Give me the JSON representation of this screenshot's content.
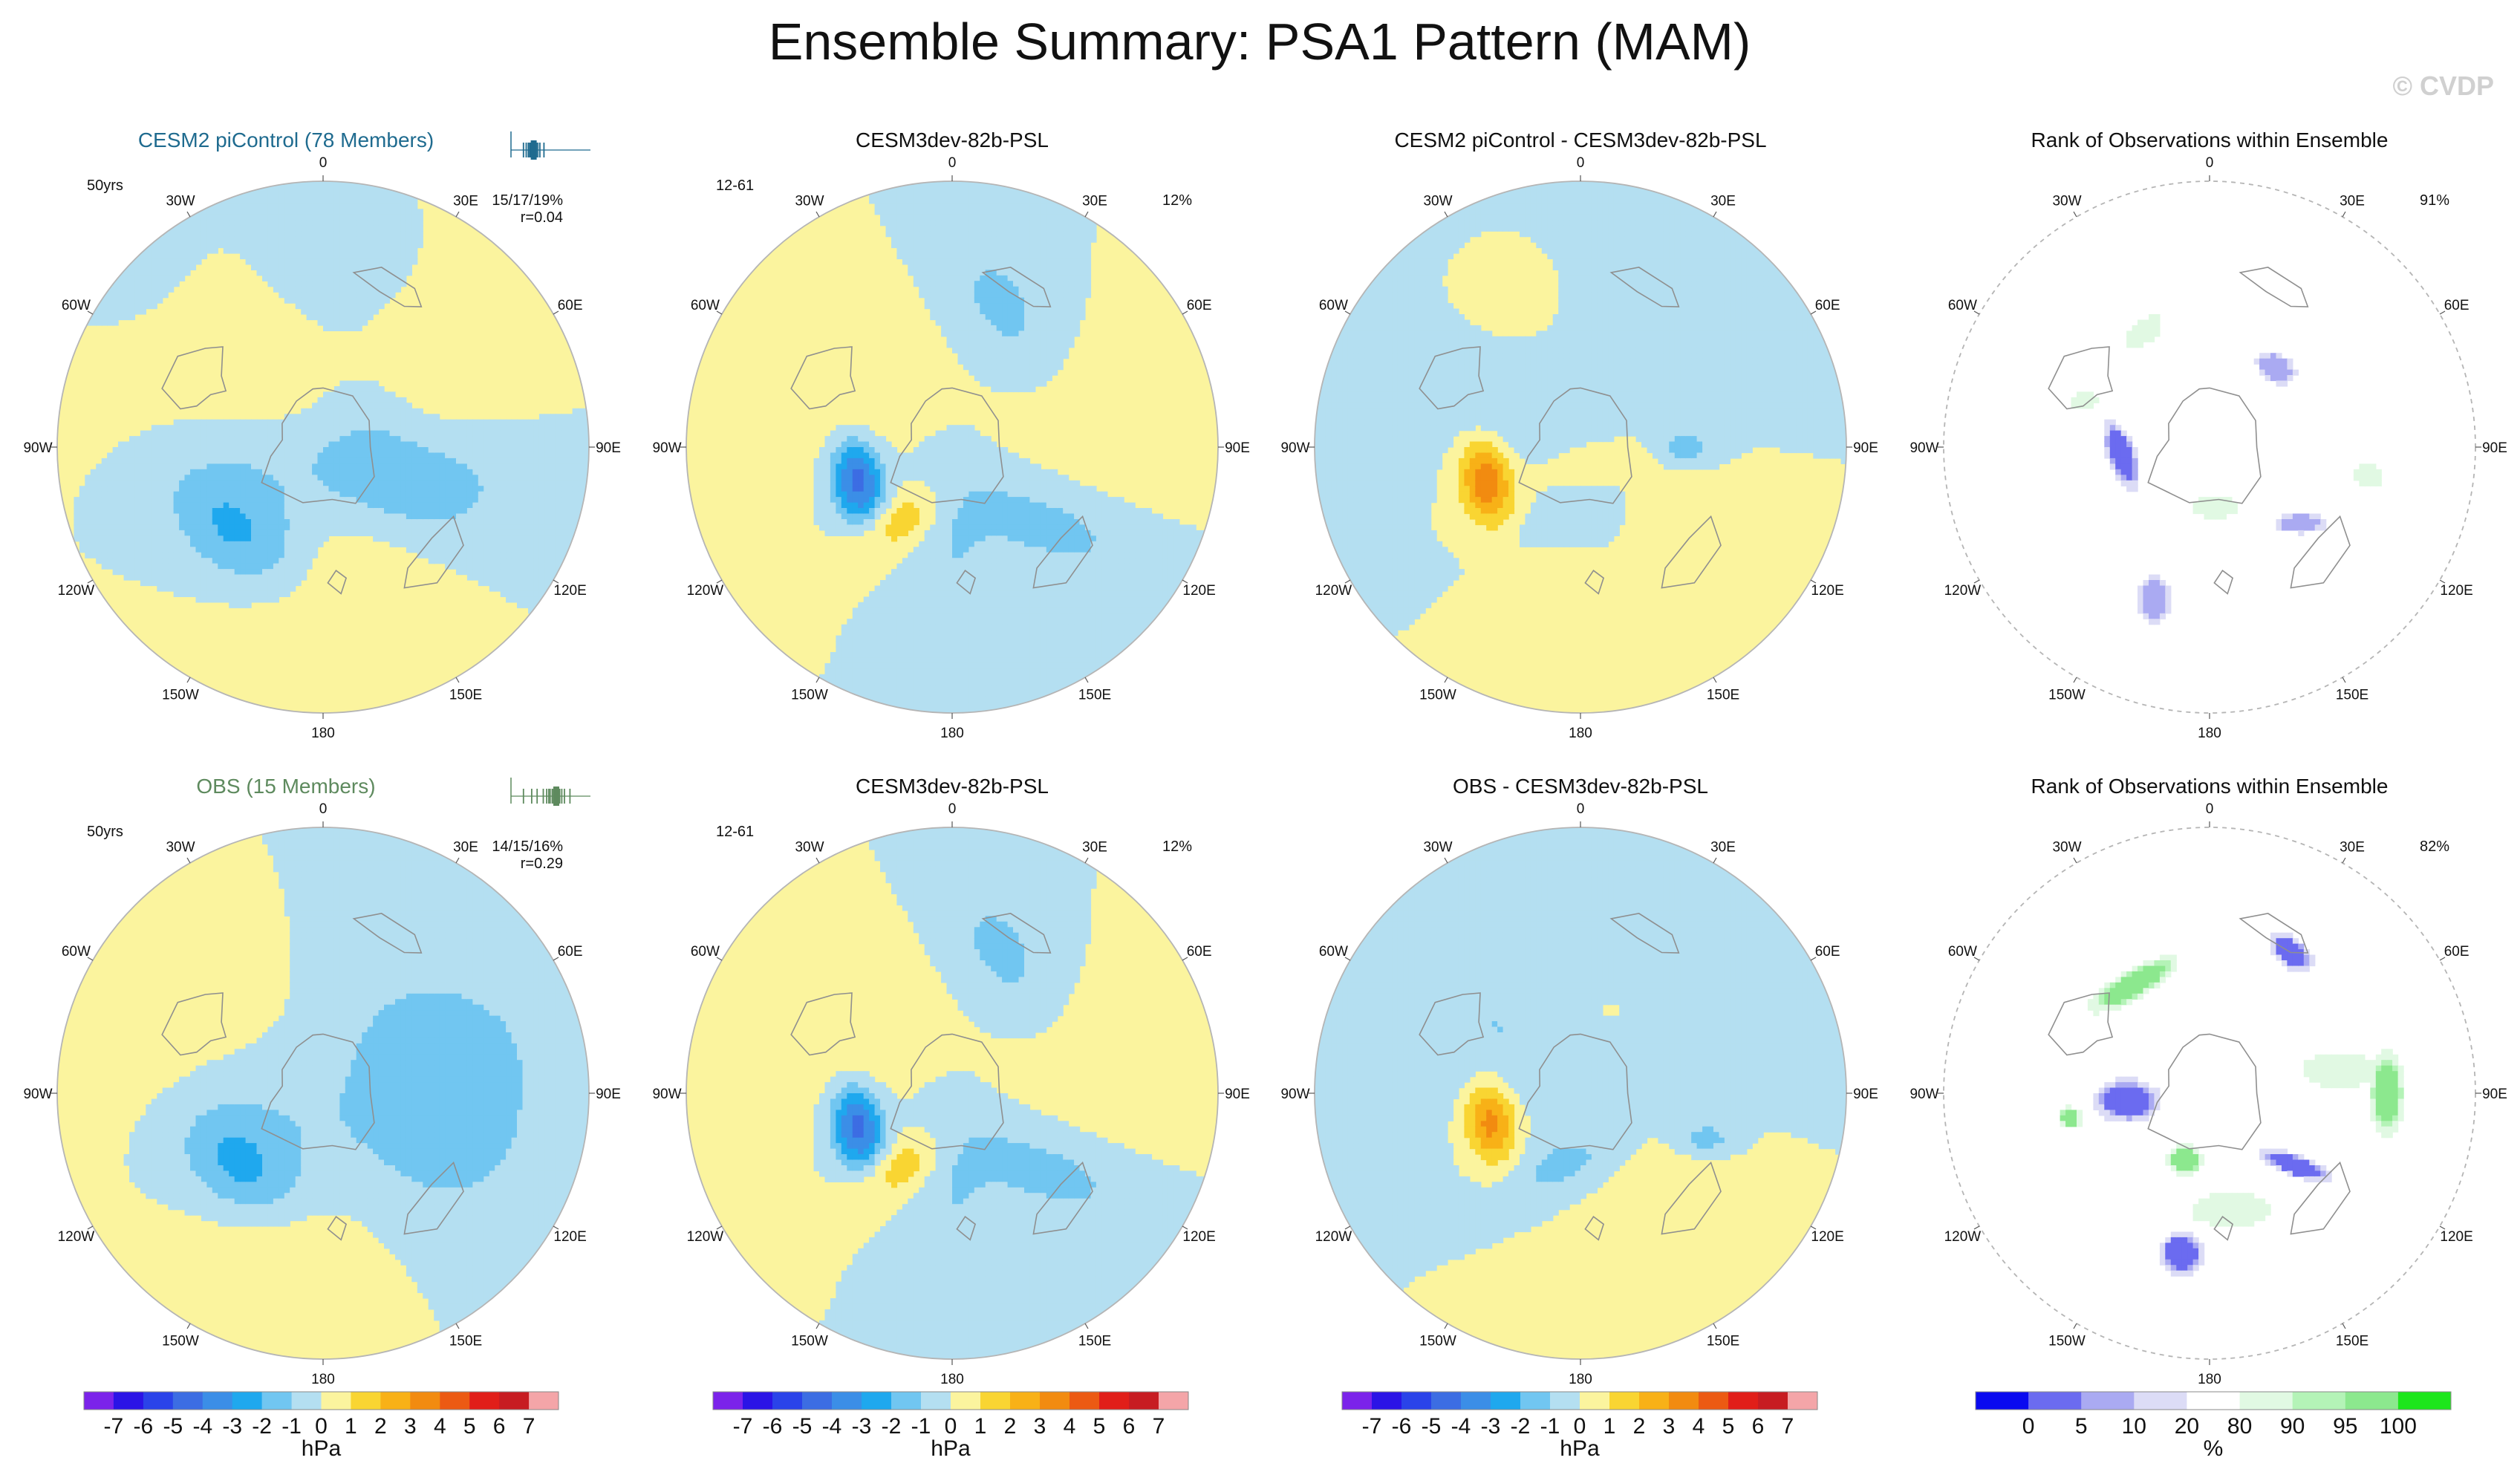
{
  "page": {
    "title": "Ensemble Summary: PSA1 Pattern (MAM)",
    "watermark": "© CVDP"
  },
  "colors": {
    "land_outline": "#8f8f8f",
    "rim": "#b5b5b5",
    "title_cesm2": "#1f6b8f",
    "title_obs": "#5e8a5e",
    "sparkline_cesm2": "#1f6b8f",
    "sparkline_obs": "#5e8a5e"
  },
  "longitude_labels": [
    "0",
    "30E",
    "60E",
    "90E",
    "120E",
    "150E",
    "180",
    "150W",
    "120W",
    "90W",
    "60W",
    "30W"
  ],
  "chart_data": [
    {
      "id": "row1-ensemble",
      "type": "polar-contour",
      "variable": "PSL",
      "title": "CESM2 piControl (78 Members)",
      "title_color": "title_cesm2",
      "left_note": "50yrs",
      "right_note_1": "15/17/19%",
      "right_note_2": "r=0.04",
      "sparkline": {
        "color": "sparkline_cesm2",
        "type": "member_distribution",
        "values": [
          0.02,
          0.06,
          0.09,
          0.11,
          0.12,
          0.13,
          0.14,
          0.15,
          0.155,
          0.16,
          0.165,
          0.17,
          0.175,
          0.18,
          0.19,
          0.2,
          0.21,
          0.23,
          0.26,
          0.32
        ],
        "highlight": 0.17
      },
      "anomalies_hPa": [
        {
          "lon_deg": 225,
          "colat_deg": 42,
          "amp": -1.9,
          "sx": 19,
          "sy": 11,
          "rot": 40
        },
        {
          "lon_deg": 270,
          "colat_deg": 30,
          "amp": -1.0,
          "sx": 34,
          "sy": 16,
          "rot": 60
        },
        {
          "lon_deg": 20,
          "colat_deg": 55,
          "amp": -0.9,
          "sx": 22,
          "sy": 16,
          "rot": 0
        },
        {
          "lon_deg": 120,
          "colat_deg": 28,
          "amp": -1.1,
          "sx": 24,
          "sy": 11,
          "rot": 20
        },
        {
          "lon_deg": 100,
          "colat_deg": 45,
          "amp": -0.8,
          "sx": 26,
          "sy": 12,
          "rot": 0
        },
        {
          "lon_deg": 60,
          "colat_deg": 18,
          "amp": -0.7,
          "sx": 14,
          "sy": 14,
          "rot": 0
        },
        {
          "lon_deg": 305,
          "colat_deg": 40,
          "amp": 1.3,
          "sx": 22,
          "sy": 18,
          "rot": 0
        },
        {
          "lon_deg": 45,
          "colat_deg": 55,
          "amp": 1.3,
          "sx": 22,
          "sy": 20,
          "rot": 0
        },
        {
          "lon_deg": 180,
          "colat_deg": 52,
          "amp": 1.1,
          "sx": 22,
          "sy": 20,
          "rot": 0
        }
      ]
    },
    {
      "id": "row1-model",
      "type": "polar-contour",
      "variable": "PSL",
      "title": "CESM3dev-82b-PSL",
      "left_note": "12-61",
      "right_note_1": "12%",
      "anomalies_hPa": [
        {
          "lon_deg": 250,
          "colat_deg": 34,
          "amp": -4.6,
          "sx": 10,
          "sy": 6,
          "rot": 80
        },
        {
          "lon_deg": 20,
          "colat_deg": 50,
          "amp": -1.3,
          "sx": 20,
          "sy": 12,
          "rot": 60
        },
        {
          "lon_deg": 130,
          "colat_deg": 40,
          "amp": -1.4,
          "sx": 26,
          "sy": 11,
          "rot": 20
        },
        {
          "lon_deg": 180,
          "colat_deg": 45,
          "amp": -0.9,
          "sx": 30,
          "sy": 9,
          "rot": 90
        },
        {
          "lon_deg": 215,
          "colat_deg": 30,
          "amp": 1.8,
          "sx": 12,
          "sy": 6,
          "rot": -30
        },
        {
          "lon_deg": 300,
          "colat_deg": 45,
          "amp": 0.9,
          "sx": 25,
          "sy": 20,
          "rot": 0
        },
        {
          "lon_deg": 80,
          "colat_deg": 55,
          "amp": 0.8,
          "sx": 25,
          "sy": 20,
          "rot": 0
        }
      ]
    },
    {
      "id": "row1-diff",
      "type": "polar-contour",
      "variable": "PSL",
      "title": "CESM2 piControl - CESM3dev-82b-PSL",
      "anomalies_hPa": [
        {
          "lon_deg": 250,
          "colat_deg": 34,
          "amp": 3.9,
          "sx": 10,
          "sy": 6,
          "rot": 80
        },
        {
          "lon_deg": 90,
          "colat_deg": 36,
          "amp": -1.6,
          "sx": 6,
          "sy": 4,
          "rot": 0
        },
        {
          "lon_deg": 170,
          "colat_deg": 22,
          "amp": -1.4,
          "sx": 16,
          "sy": 7,
          "rot": -20
        },
        {
          "lon_deg": 10,
          "colat_deg": 45,
          "amp": -0.9,
          "sx": 26,
          "sy": 16,
          "rot": 0
        },
        {
          "lon_deg": 300,
          "colat_deg": 30,
          "amp": -0.9,
          "sx": 22,
          "sy": 14,
          "rot": 0
        },
        {
          "lon_deg": 130,
          "colat_deg": 30,
          "amp": 1.1,
          "sx": 22,
          "sy": 10,
          "rot": 20
        },
        {
          "lon_deg": 190,
          "colat_deg": 55,
          "amp": 1.0,
          "sx": 16,
          "sy": 10,
          "rot": 90
        },
        {
          "lon_deg": 340,
          "colat_deg": 50,
          "amp": 1.0,
          "sx": 14,
          "sy": 12,
          "rot": 0
        }
      ]
    },
    {
      "id": "row1-rank",
      "type": "polar-rank",
      "title": "Rank of Observations within Ensemble",
      "right_note_1": "91%",
      "rank_patches": [
        {
          "lon_deg": 265,
          "colat_deg": 30,
          "val": 2,
          "sx": 10,
          "sy": 4,
          "rot": 70
        },
        {
          "lon_deg": 40,
          "colat_deg": 35,
          "val": 5,
          "sx": 6,
          "sy": 4,
          "rot": 30
        },
        {
          "lon_deg": 130,
          "colat_deg": 40,
          "val": 8,
          "sx": 8,
          "sy": 3,
          "rot": 0
        },
        {
          "lon_deg": 200,
          "colat_deg": 55,
          "val": 6,
          "sx": 5,
          "sy": 7,
          "rot": 0
        },
        {
          "lon_deg": 175,
          "colat_deg": 20,
          "val": 85,
          "sx": 8,
          "sy": 4,
          "rot": 0
        },
        {
          "lon_deg": 330,
          "colat_deg": 45,
          "val": 85,
          "sx": 8,
          "sy": 4,
          "rot": -40
        },
        {
          "lon_deg": 100,
          "colat_deg": 55,
          "val": 85,
          "sx": 5,
          "sy": 4,
          "rot": 0
        },
        {
          "lon_deg": 290,
          "colat_deg": 45,
          "val": 88,
          "sx": 4,
          "sy": 3,
          "rot": 0
        }
      ]
    },
    {
      "id": "row2-ensemble",
      "type": "polar-contour",
      "variable": "PSL",
      "title": "OBS (15 Members)",
      "title_color": "title_obs",
      "left_note": "50yrs",
      "right_note_1": "14/15/16%",
      "right_note_2": "r=0.29",
      "sparkline": {
        "color": "sparkline_obs",
        "type": "member_distribution",
        "values": [
          0.02,
          0.14,
          0.22,
          0.31,
          0.36,
          0.39,
          0.41,
          0.44,
          0.46,
          0.48,
          0.52,
          0.55,
          0.58,
          0.62,
          0.7
        ],
        "highlight": 0.5
      },
      "anomalies_hPa": [
        {
          "lon_deg": 228,
          "colat_deg": 38,
          "amp": -1.8,
          "sx": 15,
          "sy": 10,
          "rot": 40
        },
        {
          "lon_deg": 260,
          "colat_deg": 30,
          "amp": -1.0,
          "sx": 30,
          "sy": 18,
          "rot": 60
        },
        {
          "lon_deg": 60,
          "colat_deg": 40,
          "amp": -1.1,
          "sx": 40,
          "sy": 26,
          "rot": 0
        },
        {
          "lon_deg": 120,
          "colat_deg": 45,
          "amp": -1.0,
          "sx": 30,
          "sy": 24,
          "rot": 0
        },
        {
          "lon_deg": 300,
          "colat_deg": 48,
          "amp": 1.3,
          "sx": 26,
          "sy": 22,
          "rot": 0
        },
        {
          "lon_deg": 190,
          "colat_deg": 55,
          "amp": 1.1,
          "sx": 24,
          "sy": 20,
          "rot": 0
        }
      ]
    },
    {
      "id": "row2-model",
      "type": "polar-contour",
      "variable": "PSL",
      "title": "CESM3dev-82b-PSL",
      "left_note": "12-61",
      "right_note_1": "12%",
      "anomalies_hPa": [
        {
          "lon_deg": 250,
          "colat_deg": 34,
          "amp": -4.6,
          "sx": 10,
          "sy": 6,
          "rot": 80
        },
        {
          "lon_deg": 20,
          "colat_deg": 50,
          "amp": -1.3,
          "sx": 20,
          "sy": 12,
          "rot": 60
        },
        {
          "lon_deg": 130,
          "colat_deg": 40,
          "amp": -1.4,
          "sx": 26,
          "sy": 11,
          "rot": 20
        },
        {
          "lon_deg": 180,
          "colat_deg": 45,
          "amp": -0.9,
          "sx": 30,
          "sy": 9,
          "rot": 90
        },
        {
          "lon_deg": 215,
          "colat_deg": 30,
          "amp": 1.8,
          "sx": 12,
          "sy": 6,
          "rot": -30
        },
        {
          "lon_deg": 300,
          "colat_deg": 45,
          "amp": 0.9,
          "sx": 25,
          "sy": 20,
          "rot": 0
        },
        {
          "lon_deg": 80,
          "colat_deg": 55,
          "amp": 0.8,
          "sx": 25,
          "sy": 20,
          "rot": 0
        }
      ]
    },
    {
      "id": "row2-diff",
      "type": "polar-contour",
      "variable": "PSL",
      "title": "OBS - CESM3dev-82b-PSL",
      "anomalies_hPa": [
        {
          "lon_deg": 252,
          "colat_deg": 32,
          "amp": 3.6,
          "sx": 10,
          "sy": 6,
          "rot": 80
        },
        {
          "lon_deg": 110,
          "colat_deg": 45,
          "amp": -1.6,
          "sx": 7,
          "sy": 4,
          "rot": 0
        },
        {
          "lon_deg": 190,
          "colat_deg": 25,
          "amp": -1.4,
          "sx": 16,
          "sy": 8,
          "rot": -20
        },
        {
          "lon_deg": 40,
          "colat_deg": 40,
          "amp": -0.9,
          "sx": 30,
          "sy": 20,
          "rot": 0
        },
        {
          "lon_deg": 300,
          "colat_deg": 40,
          "amp": -0.9,
          "sx": 26,
          "sy": 20,
          "rot": 0
        },
        {
          "lon_deg": 150,
          "colat_deg": 50,
          "amp": 1.0,
          "sx": 20,
          "sy": 20,
          "rot": 0
        },
        {
          "lon_deg": 20,
          "colat_deg": 30,
          "amp": 1.0,
          "sx": 14,
          "sy": 8,
          "rot": 0
        }
      ]
    },
    {
      "id": "row2-rank",
      "type": "polar-rank",
      "title": "Rank of Observations within Ensemble",
      "right_note_1": "82%",
      "rank_patches": [
        {
          "lon_deg": 265,
          "colat_deg": 28,
          "val": 1,
          "sx": 9,
          "sy": 6,
          "rot": 0
        },
        {
          "lon_deg": 30,
          "colat_deg": 55,
          "val": 1,
          "sx": 7,
          "sy": 4,
          "rot": 40
        },
        {
          "lon_deg": 130,
          "colat_deg": 38,
          "val": 1,
          "sx": 10,
          "sy": 3,
          "rot": 20
        },
        {
          "lon_deg": 190,
          "colat_deg": 55,
          "val": 1,
          "sx": 6,
          "sy": 6,
          "rot": 0
        },
        {
          "lon_deg": 325,
          "colat_deg": 45,
          "val": 99,
          "sx": 14,
          "sy": 4,
          "rot": -30
        },
        {
          "lon_deg": 90,
          "colat_deg": 60,
          "val": 97,
          "sx": 5,
          "sy": 12,
          "rot": 0
        },
        {
          "lon_deg": 200,
          "colat_deg": 24,
          "val": 99,
          "sx": 5,
          "sy": 4,
          "rot": 0
        },
        {
          "lon_deg": 80,
          "colat_deg": 45,
          "val": 85,
          "sx": 14,
          "sy": 6,
          "rot": 0
        },
        {
          "lon_deg": 170,
          "colat_deg": 40,
          "val": 85,
          "sx": 14,
          "sy": 6,
          "rot": 0
        },
        {
          "lon_deg": 260,
          "colat_deg": 48,
          "val": 99,
          "sx": 3,
          "sy": 3,
          "rot": 0
        }
      ]
    }
  ],
  "colorbars": [
    {
      "id": "psl-1",
      "type": "colorbar",
      "unit": "hPa",
      "ticks": [
        "-7",
        "-6",
        "-5",
        "-4",
        "-3",
        "-2",
        "-1",
        "0",
        "1",
        "2",
        "3",
        "4",
        "5",
        "6",
        "7"
      ],
      "colors": [
        "#7b23ea",
        "#2b14e6",
        "#2a43e9",
        "#3c6de3",
        "#3b8ee7",
        "#1fa8ee",
        "#71c6f1",
        "#b4dff1",
        "#fbf49e",
        "#f9d532",
        "#f8b117",
        "#f28b10",
        "#ec5a13",
        "#e11e19",
        "#c71c22",
        "#f4a5a8"
      ]
    },
    {
      "id": "psl-2",
      "type": "colorbar",
      "unit": "hPa",
      "ticks": [
        "-7",
        "-6",
        "-5",
        "-4",
        "-3",
        "-2",
        "-1",
        "0",
        "1",
        "2",
        "3",
        "4",
        "5",
        "6",
        "7"
      ],
      "colors": [
        "#7b23ea",
        "#2b14e6",
        "#2a43e9",
        "#3c6de3",
        "#3b8ee7",
        "#1fa8ee",
        "#71c6f1",
        "#b4dff1",
        "#fbf49e",
        "#f9d532",
        "#f8b117",
        "#f28b10",
        "#ec5a13",
        "#e11e19",
        "#c71c22",
        "#f4a5a8"
      ]
    },
    {
      "id": "psl-3",
      "type": "colorbar",
      "unit": "hPa",
      "ticks": [
        "-7",
        "-6",
        "-5",
        "-4",
        "-3",
        "-2",
        "-1",
        "0",
        "1",
        "2",
        "3",
        "4",
        "5",
        "6",
        "7"
      ],
      "colors": [
        "#7b23ea",
        "#2b14e6",
        "#2a43e9",
        "#3c6de3",
        "#3b8ee7",
        "#1fa8ee",
        "#71c6f1",
        "#b4dff1",
        "#fbf49e",
        "#f9d532",
        "#f8b117",
        "#f28b10",
        "#ec5a13",
        "#e11e19",
        "#c71c22",
        "#f4a5a8"
      ]
    },
    {
      "id": "rank",
      "type": "colorbar",
      "unit": "%",
      "ticks": [
        "0",
        "5",
        "10",
        "20",
        "80",
        "90",
        "95",
        "100"
      ],
      "tick_values": [
        0,
        5,
        10,
        20,
        80,
        90,
        95,
        100
      ],
      "colors": [
        "#0a0af0",
        "#6b6bf0",
        "#aaaaf2",
        "#dcdcf6",
        "#ffffff",
        "#e1f9e3",
        "#b4f3b7",
        "#8ce88e",
        "#1de61c"
      ]
    }
  ]
}
